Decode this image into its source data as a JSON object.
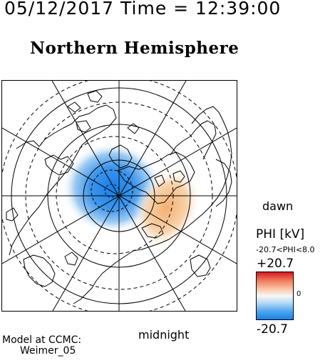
{
  "header": {
    "timestamp": "05/12/2017 Time = 12:39:00",
    "title": "Northern Hemisphere"
  },
  "map": {
    "projection": "polar stereographic, north pole centered",
    "field": "PHI [kV]",
    "features": [
      "coastlines",
      "latitude circles",
      "meridians every 30 deg",
      "potential contours"
    ],
    "colors": {
      "negative": "#1a7fe6",
      "positive": "#f3b070",
      "background": "#ffffff"
    }
  },
  "labels": {
    "dawn": "dawn",
    "midnight": "midnight"
  },
  "colorbar": {
    "title": "PHI [kV]",
    "range_text": "-20.7<PHI<8.0",
    "max_label": "+20.7",
    "zero_label": "0",
    "min_label": "-20.7",
    "colors": [
      "#d7191c",
      "#ef7d5e",
      "#fbc8a8",
      "#f7f7f7",
      "#bcdcf5",
      "#52a8ef",
      "#1a7fe6"
    ]
  },
  "footer": {
    "model_line1": "Model at CCMC:",
    "model_line2": "Weimer_05"
  }
}
